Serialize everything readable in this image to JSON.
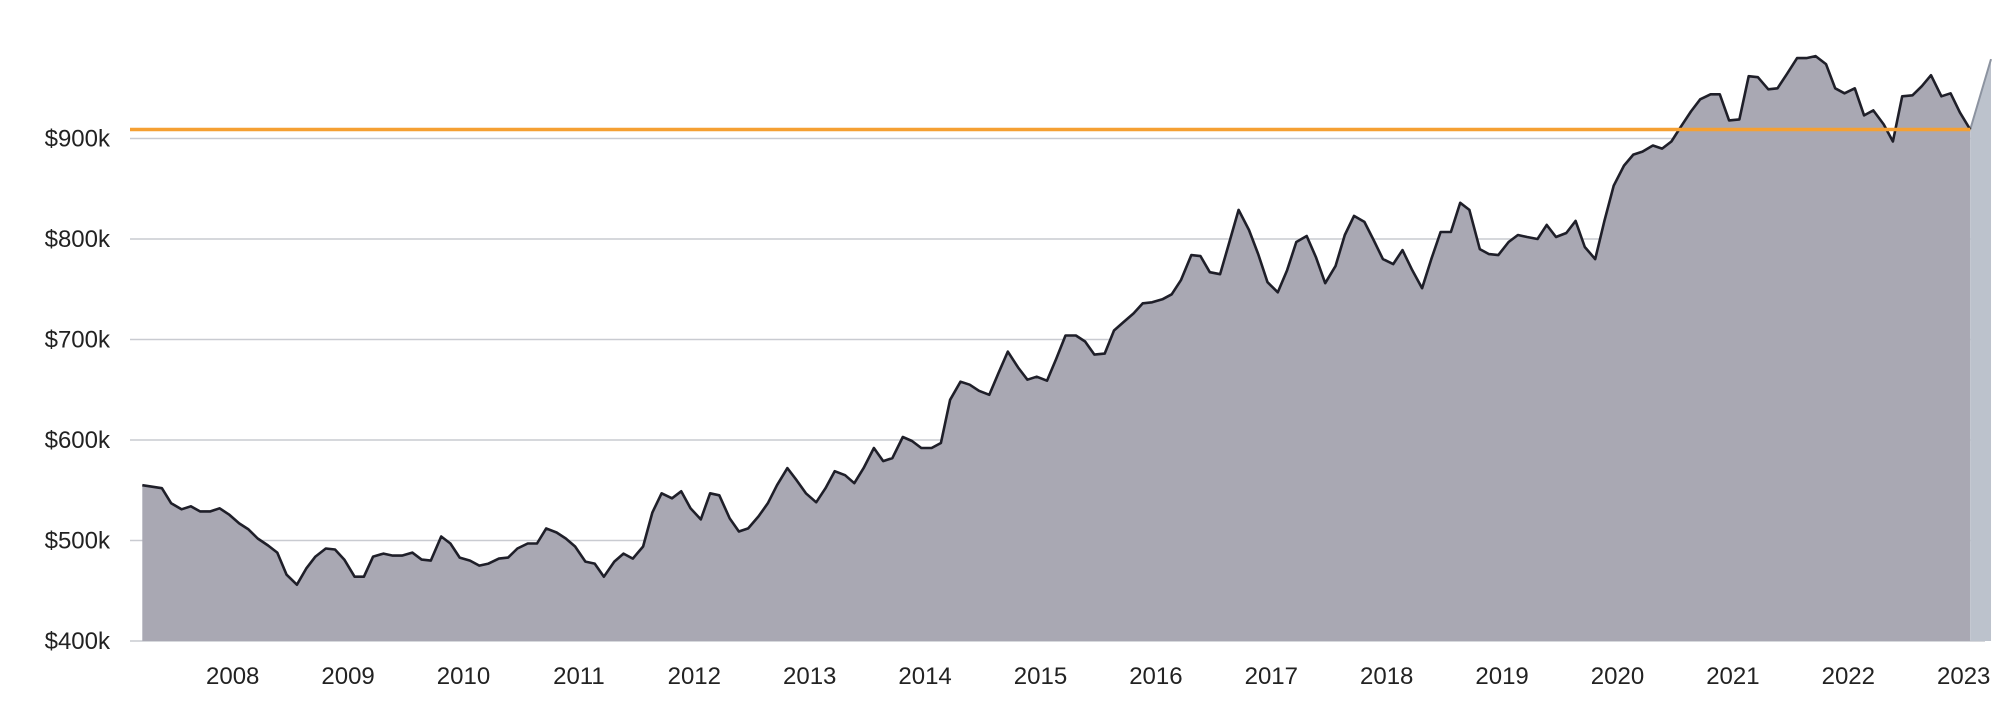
{
  "colors": {
    "area_fill": "#a9a8b3",
    "line": "#1f1f29",
    "grid": "#c9cbd1",
    "reference_line": "#f5a033",
    "projection_fill": "#bcc2cc",
    "text": "#222222"
  },
  "chart_data": {
    "type": "area",
    "title": "",
    "xlabel": "",
    "ylabel": "",
    "x_unit": "year (fractional)",
    "ylim": [
      400000,
      990000
    ],
    "xlim": [
      2007.6,
      2023.9
    ],
    "grid": "horizontal",
    "y_ticks": [
      {
        "value": 400000,
        "label": "$400k"
      },
      {
        "value": 500000,
        "label": "$500k"
      },
      {
        "value": 600000,
        "label": "$600k"
      },
      {
        "value": 700000,
        "label": "$700k"
      },
      {
        "value": 800000,
        "label": "$800k"
      },
      {
        "value": 900000,
        "label": "$900k"
      }
    ],
    "x_ticks": [
      {
        "value": 2008,
        "label": "2008"
      },
      {
        "value": 2009,
        "label": "2009"
      },
      {
        "value": 2010,
        "label": "2010"
      },
      {
        "value": 2011,
        "label": "2011"
      },
      {
        "value": 2012,
        "label": "2012"
      },
      {
        "value": 2013,
        "label": "2013"
      },
      {
        "value": 2014,
        "label": "2014"
      },
      {
        "value": 2015,
        "label": "2015"
      },
      {
        "value": 2016,
        "label": "2016"
      },
      {
        "value": 2017,
        "label": "2017"
      },
      {
        "value": 2018,
        "label": "2018"
      },
      {
        "value": 2019,
        "label": "2019"
      },
      {
        "value": 2020,
        "label": "2020"
      },
      {
        "value": 2021,
        "label": "2021"
      },
      {
        "value": 2022,
        "label": "2022"
      },
      {
        "value": 2023,
        "label": "2023"
      }
    ],
    "reference_line": {
      "value": 909000
    },
    "series": [
      {
        "x": [
          2007.63,
          2007.8,
          2007.88,
          2007.97,
          2008.05,
          2008.13,
          2008.22,
          2008.3,
          2008.38,
          2008.47,
          2008.55,
          2008.63,
          2008.72,
          2008.8,
          2008.88,
          2008.97,
          2009.05,
          2009.13,
          2009.22,
          2009.3,
          2009.38,
          2009.47,
          2009.55,
          2009.63,
          2009.72,
          2009.8,
          2009.88,
          2009.97,
          2010.05,
          2010.13,
          2010.22,
          2010.3,
          2010.38,
          2010.47,
          2010.55,
          2010.63,
          2010.72,
          2010.8,
          2010.88,
          2010.97,
          2011.05,
          2011.13,
          2011.22,
          2011.3,
          2011.38,
          2011.47,
          2011.55,
          2011.63,
          2011.72,
          2011.8,
          2011.88,
          2011.97,
          2012.05,
          2012.13,
          2012.22,
          2012.3,
          2012.38,
          2012.47,
          2012.55,
          2012.63,
          2012.72,
          2012.8,
          2012.88,
          2012.97,
          2013.05,
          2013.13,
          2013.22,
          2013.3,
          2013.38,
          2013.47,
          2013.55,
          2013.63,
          2013.72,
          2013.8,
          2013.88,
          2013.97,
          2014.05,
          2014.13,
          2014.22,
          2014.3,
          2014.38,
          2014.47,
          2014.55,
          2014.63,
          2014.72,
          2014.8,
          2014.88,
          2014.97,
          2015.05,
          2015.13,
          2015.22,
          2015.3,
          2015.38,
          2015.47,
          2015.55,
          2015.63,
          2015.72,
          2015.8,
          2015.88,
          2015.97,
          2016.05,
          2016.13,
          2016.22,
          2016.3,
          2016.38,
          2016.47,
          2016.55,
          2016.63,
          2016.72,
          2016.8,
          2016.88,
          2016.97,
          2017.05,
          2017.13,
          2017.22,
          2017.3,
          2017.38,
          2017.47,
          2017.55,
          2017.63,
          2017.72,
          2017.8,
          2017.88,
          2017.97,
          2018.05,
          2018.13,
          2018.22,
          2018.3,
          2018.38,
          2018.47,
          2018.55,
          2018.63,
          2018.72,
          2018.8,
          2018.88,
          2018.97,
          2019.05,
          2019.13,
          2019.22,
          2019.3,
          2019.38,
          2019.47,
          2019.55,
          2019.63,
          2019.72,
          2019.8,
          2019.88,
          2019.97,
          2020.05,
          2020.13,
          2020.22,
          2020.3,
          2020.38,
          2020.47,
          2020.55,
          2020.63,
          2020.72,
          2020.8,
          2020.88,
          2020.97,
          2021.05,
          2021.13,
          2021.22,
          2021.3,
          2021.38,
          2021.47,
          2021.55,
          2021.63,
          2021.72,
          2021.8,
          2021.88,
          2021.97,
          2022.05,
          2022.13,
          2022.22,
          2022.3,
          2022.38,
          2022.47,
          2022.55,
          2022.63,
          2022.72,
          2022.8,
          2022.88,
          2022.97,
          2023.05,
          2023.13,
          2023.22,
          2023.3,
          2023.38,
          2023.47
        ],
        "values": [
          555000,
          552000,
          537000,
          531000,
          534000,
          529000,
          529000,
          532000,
          526000,
          517000,
          511000,
          502000,
          495000,
          488000,
          466000,
          456000,
          472000,
          484000,
          492000,
          491000,
          481000,
          464000,
          464000,
          484000,
          487000,
          485000,
          485000,
          488000,
          481000,
          480000,
          504000,
          497000,
          483000,
          480000,
          475000,
          477000,
          482000,
          483000,
          492000,
          497000,
          497000,
          512000,
          508000,
          502000,
          494000,
          479000,
          477000,
          464000,
          479000,
          487000,
          482000,
          494000,
          528000,
          547000,
          542000,
          549000,
          532000,
          521000,
          547000,
          545000,
          522000,
          509000,
          512000,
          524000,
          537000,
          555000,
          572000,
          560000,
          547000,
          538000,
          552000,
          569000,
          565000,
          557000,
          572000,
          592000,
          579000,
          582000,
          603000,
          599000,
          592000,
          592000,
          597000,
          640000,
          658000,
          655000,
          649000,
          645000,
          667000,
          688000,
          672000,
          660000,
          663000,
          659000,
          681000,
          704000,
          704000,
          698000,
          685000,
          686000,
          709000,
          717000,
          726000,
          736000,
          737000,
          740000,
          745000,
          759000,
          784000,
          783000,
          767000,
          765000,
          797000,
          829000,
          809000,
          785000,
          757000,
          747000,
          769000,
          797000,
          803000,
          782000,
          756000,
          773000,
          804000,
          823000,
          817000,
          799000,
          780000,
          775000,
          789000,
          770000,
          751000,
          780000,
          807000,
          807000,
          836000,
          829000,
          790000,
          785000,
          784000,
          797000,
          804000,
          802000,
          800000,
          814000,
          802000,
          806000,
          818000,
          792000,
          780000,
          818000,
          853000,
          873000,
          884000,
          887000,
          893000,
          890000,
          897000,
          913000,
          927000,
          939000,
          944000,
          944000,
          918000,
          919000,
          962000,
          961000,
          949000,
          950000,
          964000,
          980000,
          980000,
          982000,
          974000,
          950000,
          945000,
          950000,
          923000,
          928000,
          914000,
          897000,
          942000,
          943000,
          952000,
          963000,
          942000,
          945000,
          926000,
          909000
        ],
        "projection": {
          "x": [
            2023.47,
            2023.65
          ],
          "values": [
            909000,
            979000
          ]
        }
      }
    ]
  }
}
